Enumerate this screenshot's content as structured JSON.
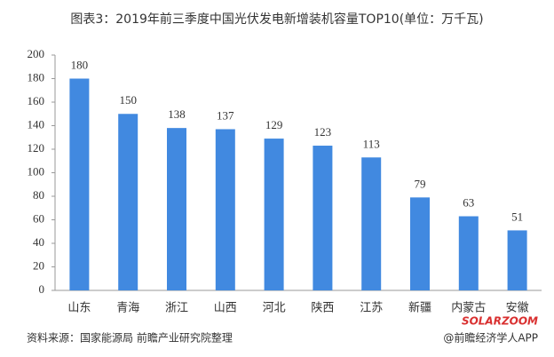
{
  "chart_data": {
    "type": "bar",
    "title": "图表3：2019年前三季度中国光伏发电新增装机容量TOP10(单位：万千瓦)",
    "categories": [
      "山东",
      "青海",
      "浙江",
      "山西",
      "河北",
      "陕西",
      "江苏",
      "新疆",
      "内蒙古",
      "安徽"
    ],
    "values": [
      180,
      150,
      138,
      137,
      129,
      123,
      113,
      79,
      63,
      51
    ],
    "color": "#4189e0",
    "ylim": [
      0,
      200
    ],
    "yticks": [
      0,
      20,
      40,
      60,
      80,
      100,
      120,
      140,
      160,
      180,
      200
    ],
    "grid": false,
    "source": "资料来源：国家能源局 前瞻产业研究院整理",
    "credit": "@前瞻经济学人APP",
    "watermark": "SOLARZOOM"
  }
}
